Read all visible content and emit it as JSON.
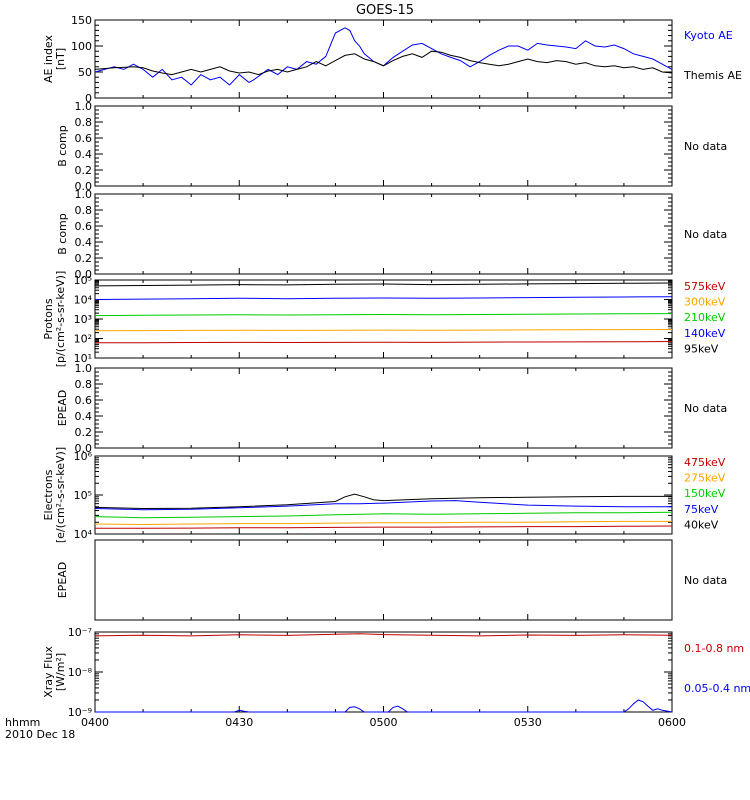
{
  "chart_data": {
    "type": "line",
    "title": "GOES-15",
    "x_axis": {
      "ticks": [
        "0400",
        "0430",
        "0500",
        "0530",
        "0600"
      ],
      "range_minutes": [
        0,
        120
      ],
      "label_line1": "hhmm",
      "label_line2": "2010 Dec 18"
    },
    "panels": [
      {
        "id": "ae",
        "ylabel": [
          "AE index",
          "[nT]"
        ],
        "scale": "linear",
        "ylim": [
          0,
          150
        ],
        "yticks": [
          "0",
          "50",
          "100",
          "150"
        ],
        "ytick_values": [
          0,
          50,
          100,
          150
        ],
        "series": [
          {
            "name": "Kyoto AE",
            "color": "#0000ff",
            "x": [
              0,
              4,
              6,
              8,
              10,
              12,
              14,
              16,
              18,
              20,
              22,
              24,
              26,
              28,
              30,
              32,
              33,
              36,
              38,
              40,
              42,
              44,
              46,
              48,
              50,
              52,
              53,
              54,
              55,
              56,
              58,
              60,
              62,
              64,
              66,
              68,
              70,
              72,
              74,
              76,
              78,
              80,
              82,
              84,
              86,
              88,
              90,
              92,
              94,
              96,
              98,
              100,
              102,
              104,
              106,
              108,
              110,
              112,
              114,
              116,
              118,
              120
            ],
            "y": [
              50,
              60,
              55,
              65,
              55,
              40,
              55,
              35,
              40,
              25,
              45,
              35,
              40,
              25,
              45,
              30,
              35,
              55,
              45,
              60,
              55,
              70,
              65,
              80,
              125,
              135,
              130,
              110,
              100,
              85,
              70,
              62,
              78,
              90,
              102,
              105,
              95,
              85,
              78,
              72,
              60,
              70,
              82,
              92,
              100,
              100,
              92,
              105,
              102,
              100,
              98,
              95,
              110,
              100,
              98,
              102,
              95,
              85,
              80,
              75,
              65,
              55
            ]
          },
          {
            "name": "Themis AE",
            "color": "#000000",
            "x": [
              0,
              4,
              8,
              10,
              12,
              14,
              16,
              18,
              20,
              22,
              24,
              26,
              28,
              30,
              32,
              34,
              36,
              38,
              40,
              42,
              44,
              46,
              48,
              50,
              52,
              54,
              56,
              58,
              60,
              62,
              64,
              66,
              68,
              70,
              72,
              74,
              76,
              78,
              80,
              82,
              84,
              86,
              88,
              90,
              92,
              94,
              96,
              98,
              100,
              102,
              104,
              106,
              108,
              110,
              112,
              114,
              116,
              118,
              120
            ],
            "y": [
              55,
              58,
              60,
              58,
              52,
              48,
              45,
              50,
              55,
              50,
              55,
              60,
              52,
              48,
              50,
              45,
              52,
              55,
              50,
              55,
              60,
              70,
              62,
              72,
              82,
              85,
              75,
              70,
              62,
              72,
              80,
              85,
              78,
              90,
              88,
              82,
              78,
              72,
              68,
              65,
              62,
              65,
              70,
              75,
              70,
              68,
              72,
              70,
              65,
              68,
              62,
              60,
              62,
              58,
              60,
              55,
              58,
              50,
              48
            ]
          }
        ]
      },
      {
        "id": "bcomp1",
        "ylabel": [
          "B comp"
        ],
        "scale": "linear",
        "ylim": [
          0,
          1
        ],
        "yticks": [
          "0.0",
          "0.2",
          "0.4",
          "0.6",
          "0.8",
          "1.0"
        ],
        "ytick_values": [
          0,
          0.2,
          0.4,
          0.6,
          0.8,
          1.0
        ],
        "no_data": "No data"
      },
      {
        "id": "bcomp2",
        "ylabel": [
          "B comp"
        ],
        "scale": "linear",
        "ylim": [
          0,
          1
        ],
        "yticks": [
          "0.0",
          "0.2",
          "0.4",
          "0.6",
          "0.8",
          "1.0"
        ],
        "ytick_values": [
          0,
          0.2,
          0.4,
          0.6,
          0.8,
          1.0
        ],
        "no_data": "No data"
      },
      {
        "id": "protons",
        "ylabel": [
          "Protons",
          "[p/(cm²-s-sr-keV)]"
        ],
        "scale": "log",
        "ylim": [
          10,
          100000
        ],
        "yticks": [
          "10¹",
          "10²",
          "10³",
          "10⁴",
          "10⁵"
        ],
        "ytick_values": [
          10,
          100,
          1000,
          10000,
          100000
        ],
        "series": [
          {
            "name": "95keV",
            "color": "#000000",
            "x": [
              0,
              10,
              20,
              30,
              40,
              50,
              60,
              70,
              80,
              90,
              100,
              110,
              120
            ],
            "y": [
              50000,
              52000,
              55000,
              58000,
              56000,
              60000,
              62000,
              58000,
              60000,
              63000,
              65000,
              68000,
              70000
            ]
          },
          {
            "name": "140keV",
            "color": "#0000ff",
            "x": [
              0,
              10,
              20,
              30,
              40,
              50,
              60,
              70,
              80,
              90,
              100,
              110,
              120
            ],
            "y": [
              10000,
              10500,
              11000,
              11500,
              11000,
              11500,
              12000,
              11500,
              12000,
              12500,
              13000,
              13500,
              14000
            ]
          },
          {
            "name": "210keV",
            "color": "#00cc00",
            "x": [
              0,
              10,
              20,
              30,
              40,
              50,
              60,
              70,
              80,
              90,
              100,
              110,
              120
            ],
            "y": [
              1500,
              1550,
              1600,
              1650,
              1600,
              1650,
              1700,
              1650,
              1700,
              1750,
              1800,
              1850,
              1900
            ]
          },
          {
            "name": "300keV",
            "color": "#ffa500",
            "x": [
              0,
              10,
              20,
              30,
              40,
              50,
              60,
              70,
              80,
              90,
              100,
              110,
              120
            ],
            "y": [
              250,
              255,
              260,
              265,
              260,
              265,
              270,
              265,
              270,
              275,
              280,
              285,
              290
            ]
          },
          {
            "name": "575keV",
            "color": "#c00000",
            "x": [
              0,
              10,
              20,
              30,
              40,
              50,
              60,
              70,
              80,
              90,
              100,
              110,
              120
            ],
            "y": [
              60,
              61,
              62,
              63,
              62,
              63,
              64,
              63,
              65,
              66,
              67,
              68,
              70
            ]
          }
        ]
      },
      {
        "id": "epead1",
        "ylabel": [
          "EPEAD"
        ],
        "scale": "linear",
        "ylim": [
          0,
          1
        ],
        "yticks": [
          "0.0",
          "0.2",
          "0.4",
          "0.6",
          "0.8",
          "1.0"
        ],
        "ytick_values": [
          0,
          0.2,
          0.4,
          0.6,
          0.8,
          1.0
        ],
        "no_data": "No data"
      },
      {
        "id": "electrons",
        "ylabel": [
          "Electrons",
          "[e/(cm²-s-sr-keV)]"
        ],
        "scale": "log",
        "ylim": [
          10000,
          1000000
        ],
        "yticks": [
          "10⁴",
          "10⁵",
          "10⁶"
        ],
        "ytick_values": [
          10000,
          100000,
          1000000
        ],
        "series": [
          {
            "name": "40keV",
            "color": "#000000",
            "x": [
              0,
              10,
              20,
              30,
              40,
              45,
              50,
              52,
              54,
              56,
              58,
              60,
              70,
              80,
              90,
              100,
              110,
              120
            ],
            "y": [
              48000,
              45000,
              46000,
              50000,
              56000,
              62000,
              68000,
              90000,
              105000,
              90000,
              75000,
              72000,
              80000,
              85000,
              88000,
              90000,
              92000,
              92000
            ]
          },
          {
            "name": "75keV",
            "color": "#0000ff",
            "x": [
              0,
              10,
              20,
              30,
              40,
              50,
              55,
              60,
              70,
              75,
              80,
              90,
              100,
              110,
              120
            ],
            "y": [
              45000,
              42000,
              43000,
              47000,
              52000,
              60000,
              60000,
              62000,
              70000,
              72000,
              65000,
              55000,
              52000,
              50000,
              50000
            ]
          },
          {
            "name": "150keV",
            "color": "#00cc00",
            "x": [
              0,
              10,
              20,
              30,
              40,
              50,
              60,
              70,
              80,
              90,
              100,
              110,
              120
            ],
            "y": [
              28000,
              26000,
              27000,
              28000,
              29000,
              31000,
              33000,
              32000,
              33000,
              34000,
              35000,
              35000,
              36000
            ]
          },
          {
            "name": "275keV",
            "color": "#ffa500",
            "x": [
              0,
              10,
              20,
              30,
              40,
              50,
              60,
              70,
              80,
              90,
              100,
              110,
              120
            ],
            "y": [
              18000,
              17500,
              18000,
              18500,
              18500,
              19000,
              19500,
              19500,
              20000,
              20000,
              20500,
              21000,
              21000
            ]
          },
          {
            "name": "475keV",
            "color": "#c00000",
            "x": [
              0,
              10,
              20,
              30,
              40,
              50,
              60,
              70,
              80,
              90,
              100,
              110,
              120
            ],
            "y": [
              14000,
              14000,
              14200,
              14500,
              14500,
              14800,
              15000,
              15000,
              15200,
              15500,
              15500,
              15800,
              16000
            ]
          }
        ]
      },
      {
        "id": "epead2",
        "ylabel": [
          "EPEAD"
        ],
        "scale": "linear",
        "ylim": [
          0,
          1
        ],
        "yticks": [],
        "ytick_values": [],
        "no_data": "No data"
      },
      {
        "id": "xray",
        "ylabel": [
          "Xray Flux",
          "[W/m²]"
        ],
        "scale": "log",
        "ylim": [
          1e-09,
          1e-07
        ],
        "yticks": [
          "10⁻⁷",
          "10⁻⁸",
          "10⁻⁹"
        ],
        "ytick_values": [
          1e-07,
          1e-08,
          1e-09
        ],
        "series": [
          {
            "name": "0.1-0.8 nm",
            "color": "#c00000",
            "x": [
              0,
              10,
              20,
              30,
              40,
              50,
              55,
              60,
              70,
              80,
              90,
              100,
              110,
              120
            ],
            "y": [
              8e-08,
              8.3e-08,
              8e-08,
              8.5e-08,
              8.2e-08,
              8.8e-08,
              9e-08,
              8.6e-08,
              8.3e-08,
              8e-08,
              8.4e-08,
              8.2e-08,
              8.5e-08,
              8.3e-08
            ]
          },
          {
            "name": "0.05-0.4 nm",
            "color": "#0000ff",
            "x": [
              0,
              29,
              30,
              31,
              32,
              52,
              53,
              54,
              55,
              56,
              61,
              62,
              63,
              64,
              65,
              110,
              111,
              112,
              113,
              114,
              115,
              116,
              117,
              118,
              120
            ],
            "y": [
              1e-09,
              1e-09,
              1.1e-09,
              1.05e-09,
              1e-09,
              1e-09,
              1.3e-09,
              1.35e-09,
              1.2e-09,
              1e-09,
              1e-09,
              1.3e-09,
              1.4e-09,
              1.2e-09,
              1e-09,
              1e-09,
              1.2e-09,
              1.6e-09,
              2e-09,
              1.8e-09,
              1.4e-09,
              1.1e-09,
              1.2e-09,
              1.1e-09,
              1e-09
            ]
          }
        ]
      }
    ]
  },
  "colors": {
    "kyoto_ae": "#0000ff",
    "themis_ae": "#000000",
    "red": "#c00000",
    "orange": "#ffa500",
    "green": "#00cc00",
    "blue": "#0000ff",
    "black": "#000000"
  }
}
